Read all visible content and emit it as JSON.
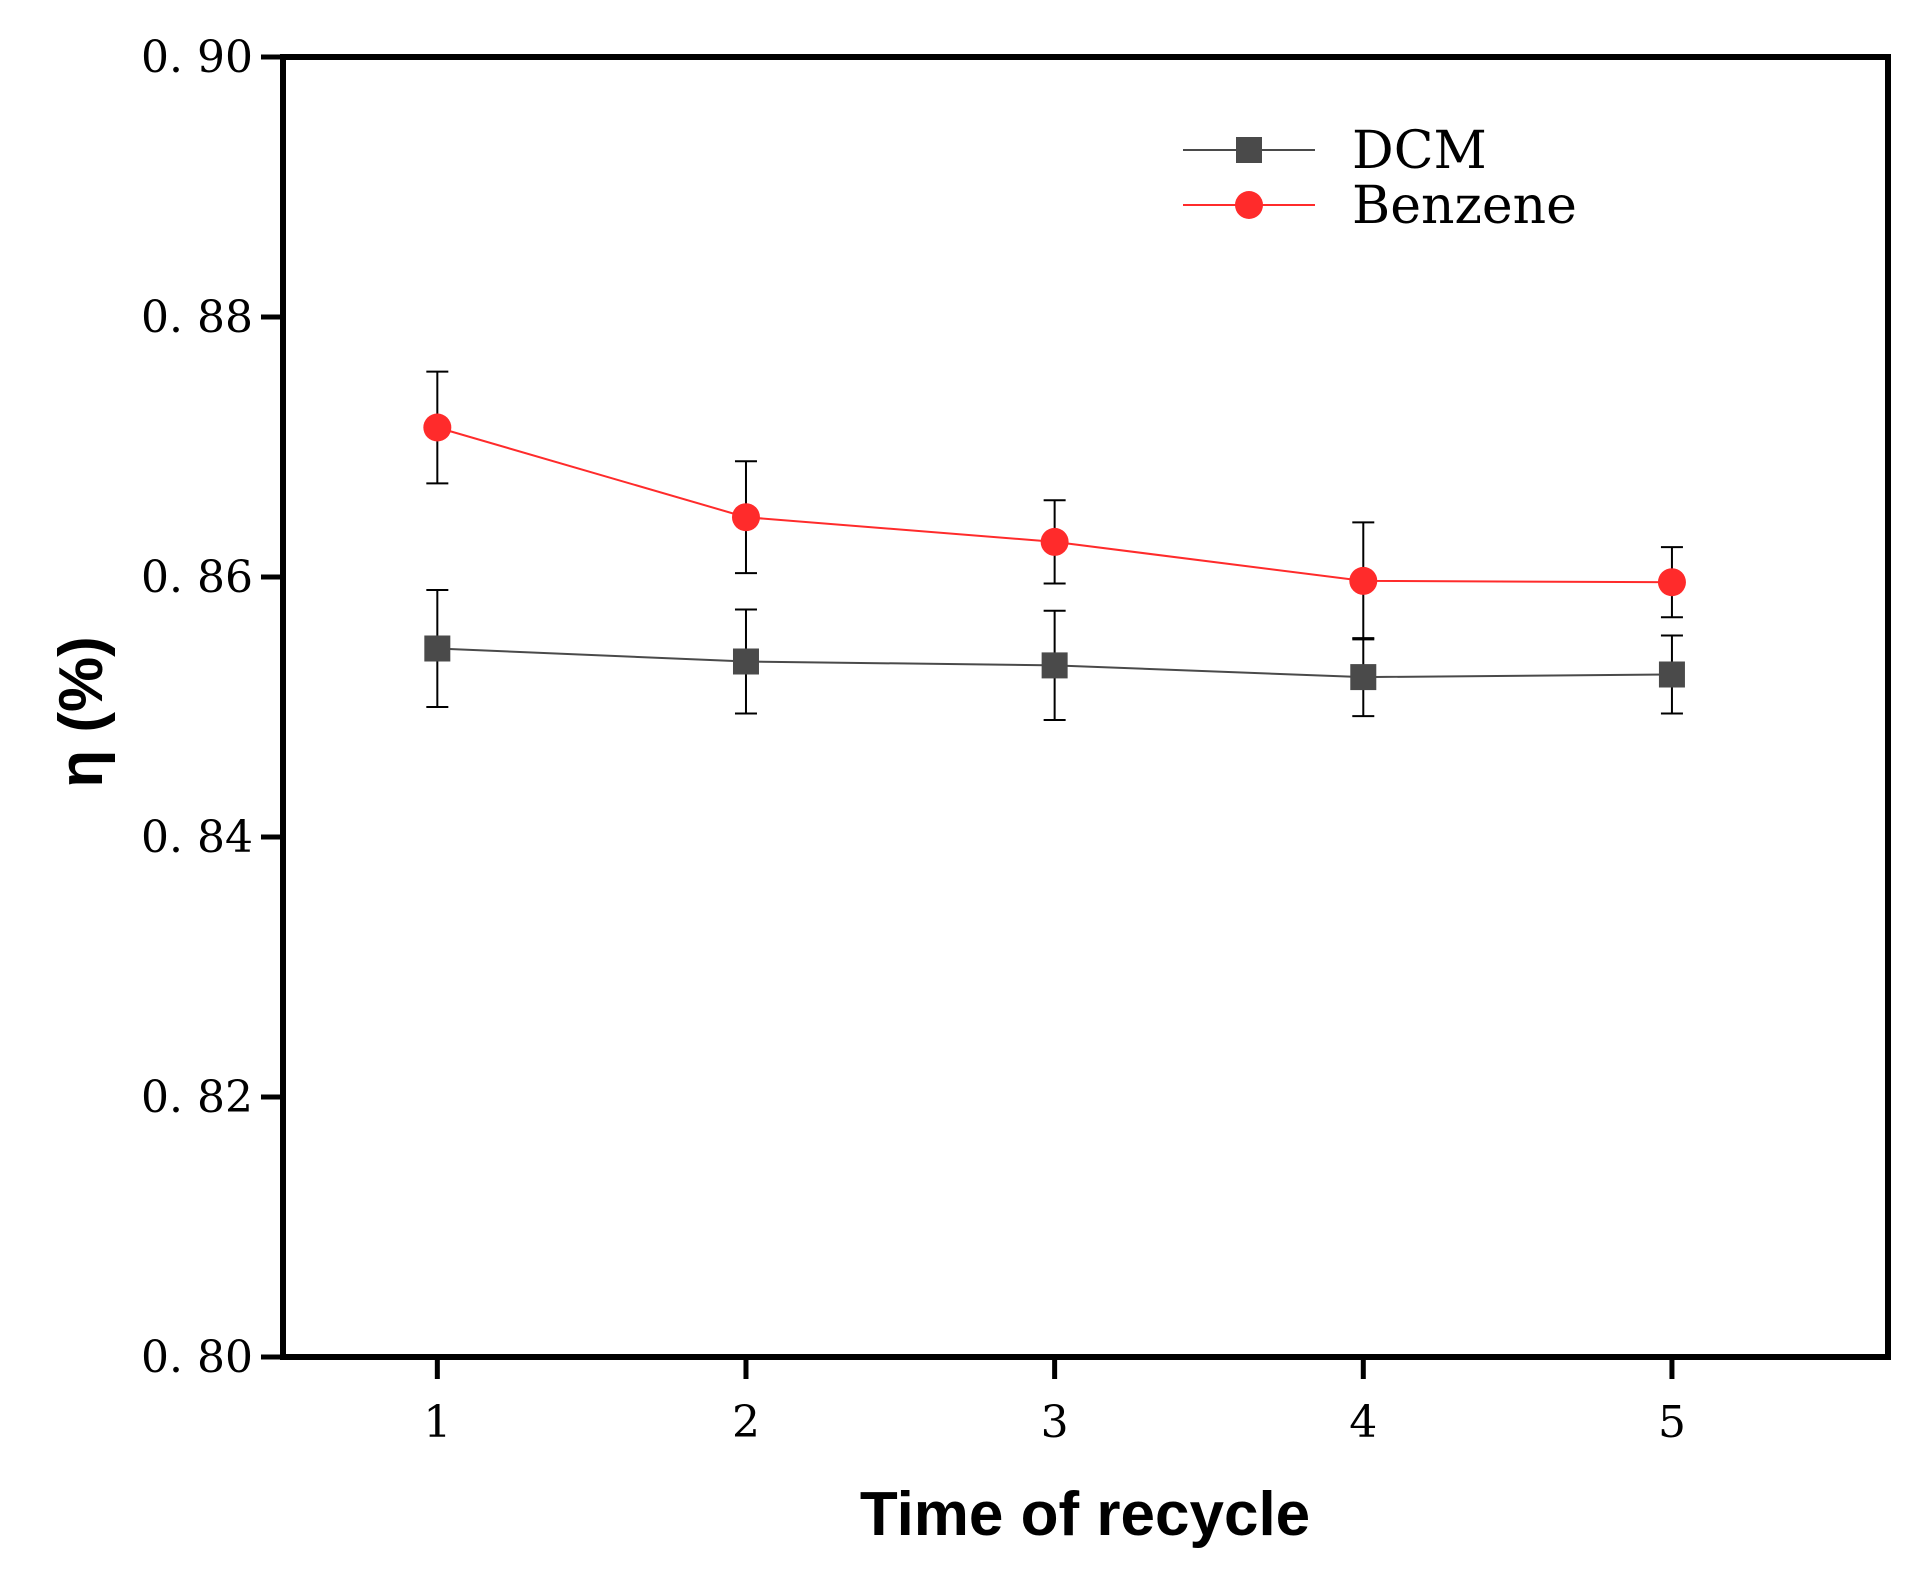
{
  "chart_data": {
    "type": "line",
    "title": "",
    "xlabel": "Time of recycle",
    "ylabel": "η (%)",
    "x": [
      1,
      2,
      3,
      4,
      5
    ],
    "xlim": [
      0.5,
      5.7
    ],
    "ylim": [
      0.8,
      0.9
    ],
    "xticks": [
      1,
      2,
      3,
      4,
      5
    ],
    "xtick_labels": [
      "1",
      "2",
      "3",
      "4",
      "5"
    ],
    "yticks": [
      0.8,
      0.82,
      0.84,
      0.86,
      0.88,
      0.9
    ],
    "ytick_labels": [
      "0. 80",
      "0. 82",
      "0. 84",
      "0. 86",
      "0. 88",
      "0. 90"
    ],
    "grid": false,
    "legend_position": "top-right",
    "series": [
      {
        "name": "DCM",
        "marker": "square",
        "color": "#4a4a4a",
        "values": [
          0.8545,
          0.8535,
          0.8532,
          0.8523,
          0.8525
        ],
        "error": [
          0.0045,
          0.004,
          0.0042,
          0.003,
          0.003
        ]
      },
      {
        "name": "Benzene",
        "marker": "circle",
        "color": "#ff2b2b",
        "values": [
          0.8715,
          0.8646,
          0.8627,
          0.8597,
          0.8596
        ],
        "error": [
          0.0043,
          0.0043,
          0.0032,
          0.0045,
          0.0027
        ]
      }
    ]
  }
}
